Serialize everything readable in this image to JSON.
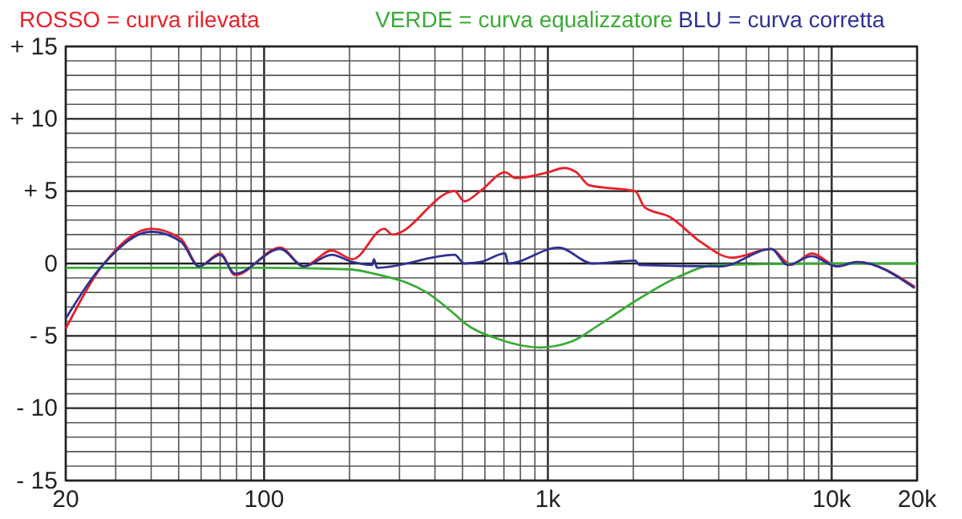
{
  "chart_data": {
    "type": "line",
    "log": "x",
    "grid": true,
    "legend": "top",
    "line_style": "solid",
    "marker": "none",
    "xlim": [
      20,
      20000
    ],
    "ylim": [
      -15,
      15
    ],
    "xticks": [
      20,
      {
        "value": 30,
        "label": null
      },
      {
        "value": 40,
        "label": null
      },
      {
        "value": 50,
        "label": null
      },
      {
        "value": 60,
        "label": null
      },
      {
        "value": 70,
        "label": null
      },
      {
        "value": 80,
        "label": null
      },
      {
        "value": 90,
        "label": null
      },
      100,
      {
        "value": 200,
        "label": null
      },
      {
        "value": 300,
        "label": null
      },
      {
        "value": 400,
        "label": null
      },
      {
        "value": 500,
        "label": null
      },
      {
        "value": 600,
        "label": null
      },
      {
        "value": 700,
        "label": null
      },
      {
        "value": 800,
        "label": null
      },
      {
        "value": 900,
        "label": null
      },
      {
        "value": 1000,
        "label": "1k"
      },
      {
        "value": 2000,
        "label": null
      },
      {
        "value": 3000,
        "label": null
      },
      {
        "value": 4000,
        "label": null
      },
      {
        "value": 5000,
        "label": null
      },
      {
        "value": 6000,
        "label": null
      },
      {
        "value": 7000,
        "label": null
      },
      {
        "value": 8000,
        "label": null
      },
      {
        "value": 9000,
        "label": null
      },
      {
        "value": 10000,
        "label": "10k"
      },
      {
        "value": 20000,
        "label": "20k"
      }
    ],
    "yticks": [
      {
        "value": -15,
        "label": "- 15"
      },
      {
        "value": -14,
        "label": null
      },
      {
        "value": -13,
        "label": null
      },
      {
        "value": -12,
        "label": null
      },
      {
        "value": -11,
        "label": null
      },
      {
        "value": -10,
        "label": "- 10"
      },
      {
        "value": -9,
        "label": null
      },
      {
        "value": -8,
        "label": null
      },
      {
        "value": -7,
        "label": null
      },
      {
        "value": -6,
        "label": null
      },
      {
        "value": -5,
        "label": "- 5"
      },
      {
        "value": -4,
        "label": null
      },
      {
        "value": -3,
        "label": null
      },
      {
        "value": -2,
        "label": null
      },
      {
        "value": -1,
        "label": null
      },
      0,
      {
        "value": 1,
        "label": null
      },
      {
        "value": 2,
        "label": null
      },
      {
        "value": 3,
        "label": null
      },
      {
        "value": 4,
        "label": null
      },
      {
        "value": 5,
        "label": "+ 5"
      },
      {
        "value": 6,
        "label": null
      },
      {
        "value": 7,
        "label": null
      },
      {
        "value": 8,
        "label": null
      },
      {
        "value": 9,
        "label": null
      },
      {
        "value": 10,
        "label": "+ 10"
      },
      {
        "value": 11,
        "label": null
      },
      {
        "value": 12,
        "label": null
      },
      {
        "value": 13,
        "label": null
      },
      {
        "value": 14,
        "label": null
      },
      {
        "value": 15,
        "label": "+ 15"
      }
    ],
    "series": [
      {
        "name": "ROSSO = curva rilevata",
        "color": "#e8202a",
        "x": [
          20,
          27.3,
          40,
          51,
          59,
          70,
          79,
          114,
          138,
          173,
          205,
          265,
          283,
          469,
          508,
          578,
          707,
          772,
          1000,
          1140,
          1260,
          1400,
          2030,
          2190,
          2700,
          3450,
          4450,
          6120,
          7200,
          8500,
          10500,
          12300,
          19600
        ],
        "values": [
          -4.5,
          0,
          2.4,
          1.7,
          -0.2,
          0.7,
          -0.8,
          1.1,
          -0.2,
          0.9,
          0.3,
          2.4,
          2,
          5,
          4.3,
          5,
          6.3,
          5.9,
          6.3,
          6.6,
          6.3,
          5.4,
          5,
          3.9,
          3.2,
          1.5,
          0.4,
          1,
          -0.1,
          0.7,
          -0.2,
          0.1,
          -1.6
        ]
      },
      {
        "name": "VERDE = curva equalizzatore",
        "color": "#3aaa35",
        "x": [
          20,
          100,
          200,
          243,
          374,
          469,
          508,
          665,
          940,
          1210,
          1500,
          2030,
          2900,
          3900,
          10000,
          20000
        ],
        "values": [
          -0.3,
          -0.3,
          -0.4,
          -0.7,
          -2,
          -3.5,
          -4.1,
          -5.2,
          -5.8,
          -5.4,
          -4.3,
          -2.6,
          -0.9,
          -0.1,
          0,
          0
        ]
      },
      {
        "name": "BLU = curva corretta",
        "color": "#2e3192",
        "x": [
          20,
          27.3,
          40,
          51,
          59,
          70,
          79,
          114,
          138,
          173,
          205,
          240,
          244,
          250,
          469,
          508,
          578,
          707,
          725,
          1090,
          1440,
          2030,
          2100,
          4070,
          6120,
          7000,
          8500,
          10400,
          12300,
          19600
        ],
        "values": [
          -3.8,
          0,
          2.2,
          1.5,
          -0.2,
          0.6,
          -0.7,
          1,
          -0.2,
          0.6,
          0.1,
          -0.1,
          0.3,
          -0.3,
          0.6,
          0,
          0.1,
          0.7,
          0,
          1.1,
          0,
          0.2,
          -0.1,
          -0.2,
          1,
          -0.1,
          0.5,
          -0.2,
          0.1,
          -1.7
        ]
      }
    ]
  }
}
